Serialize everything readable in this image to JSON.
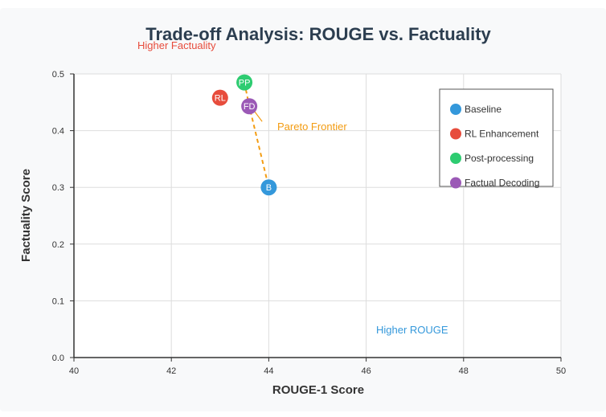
{
  "chart_data": {
    "type": "scatter",
    "title": "Trade-off Analysis: ROUGE vs. Factuality",
    "xlabel": "ROUGE-1 Score",
    "ylabel": "Factuality Score",
    "xlim": [
      40,
      50
    ],
    "ylim": [
      0.0,
      0.5
    ],
    "xticks": [
      "40",
      "42",
      "44",
      "46",
      "48",
      "50"
    ],
    "yticks": [
      "0.0",
      "0.1",
      "0.2",
      "0.3",
      "0.4",
      "0.5"
    ],
    "grid": true,
    "legend_position": "top-right",
    "points": [
      {
        "name": "Baseline",
        "label": "B",
        "x": 44.0,
        "y": 0.3,
        "color": "#3498db"
      },
      {
        "name": "RL Enhancement",
        "label": "RL",
        "x": 43.0,
        "y": 0.458,
        "color": "#e74c3c"
      },
      {
        "name": "Post-processing",
        "label": "PP",
        "x": 43.5,
        "y": 0.485,
        "color": "#2ecc71"
      },
      {
        "name": "Factual Decoding",
        "label": "FD",
        "x": 43.6,
        "y": 0.443,
        "color": "#9b59b6"
      }
    ],
    "pareto_frontier": {
      "label": "Pareto Frontier",
      "color": "#f39c12",
      "x": [
        43.5,
        43.6,
        44.0
      ]
    },
    "annotations": {
      "higher_factuality": {
        "text": "Higher Factuality",
        "color": "#e74c3c"
      },
      "higher_rouge": {
        "text": "Higher ROUGE",
        "color": "#3498db"
      }
    }
  }
}
